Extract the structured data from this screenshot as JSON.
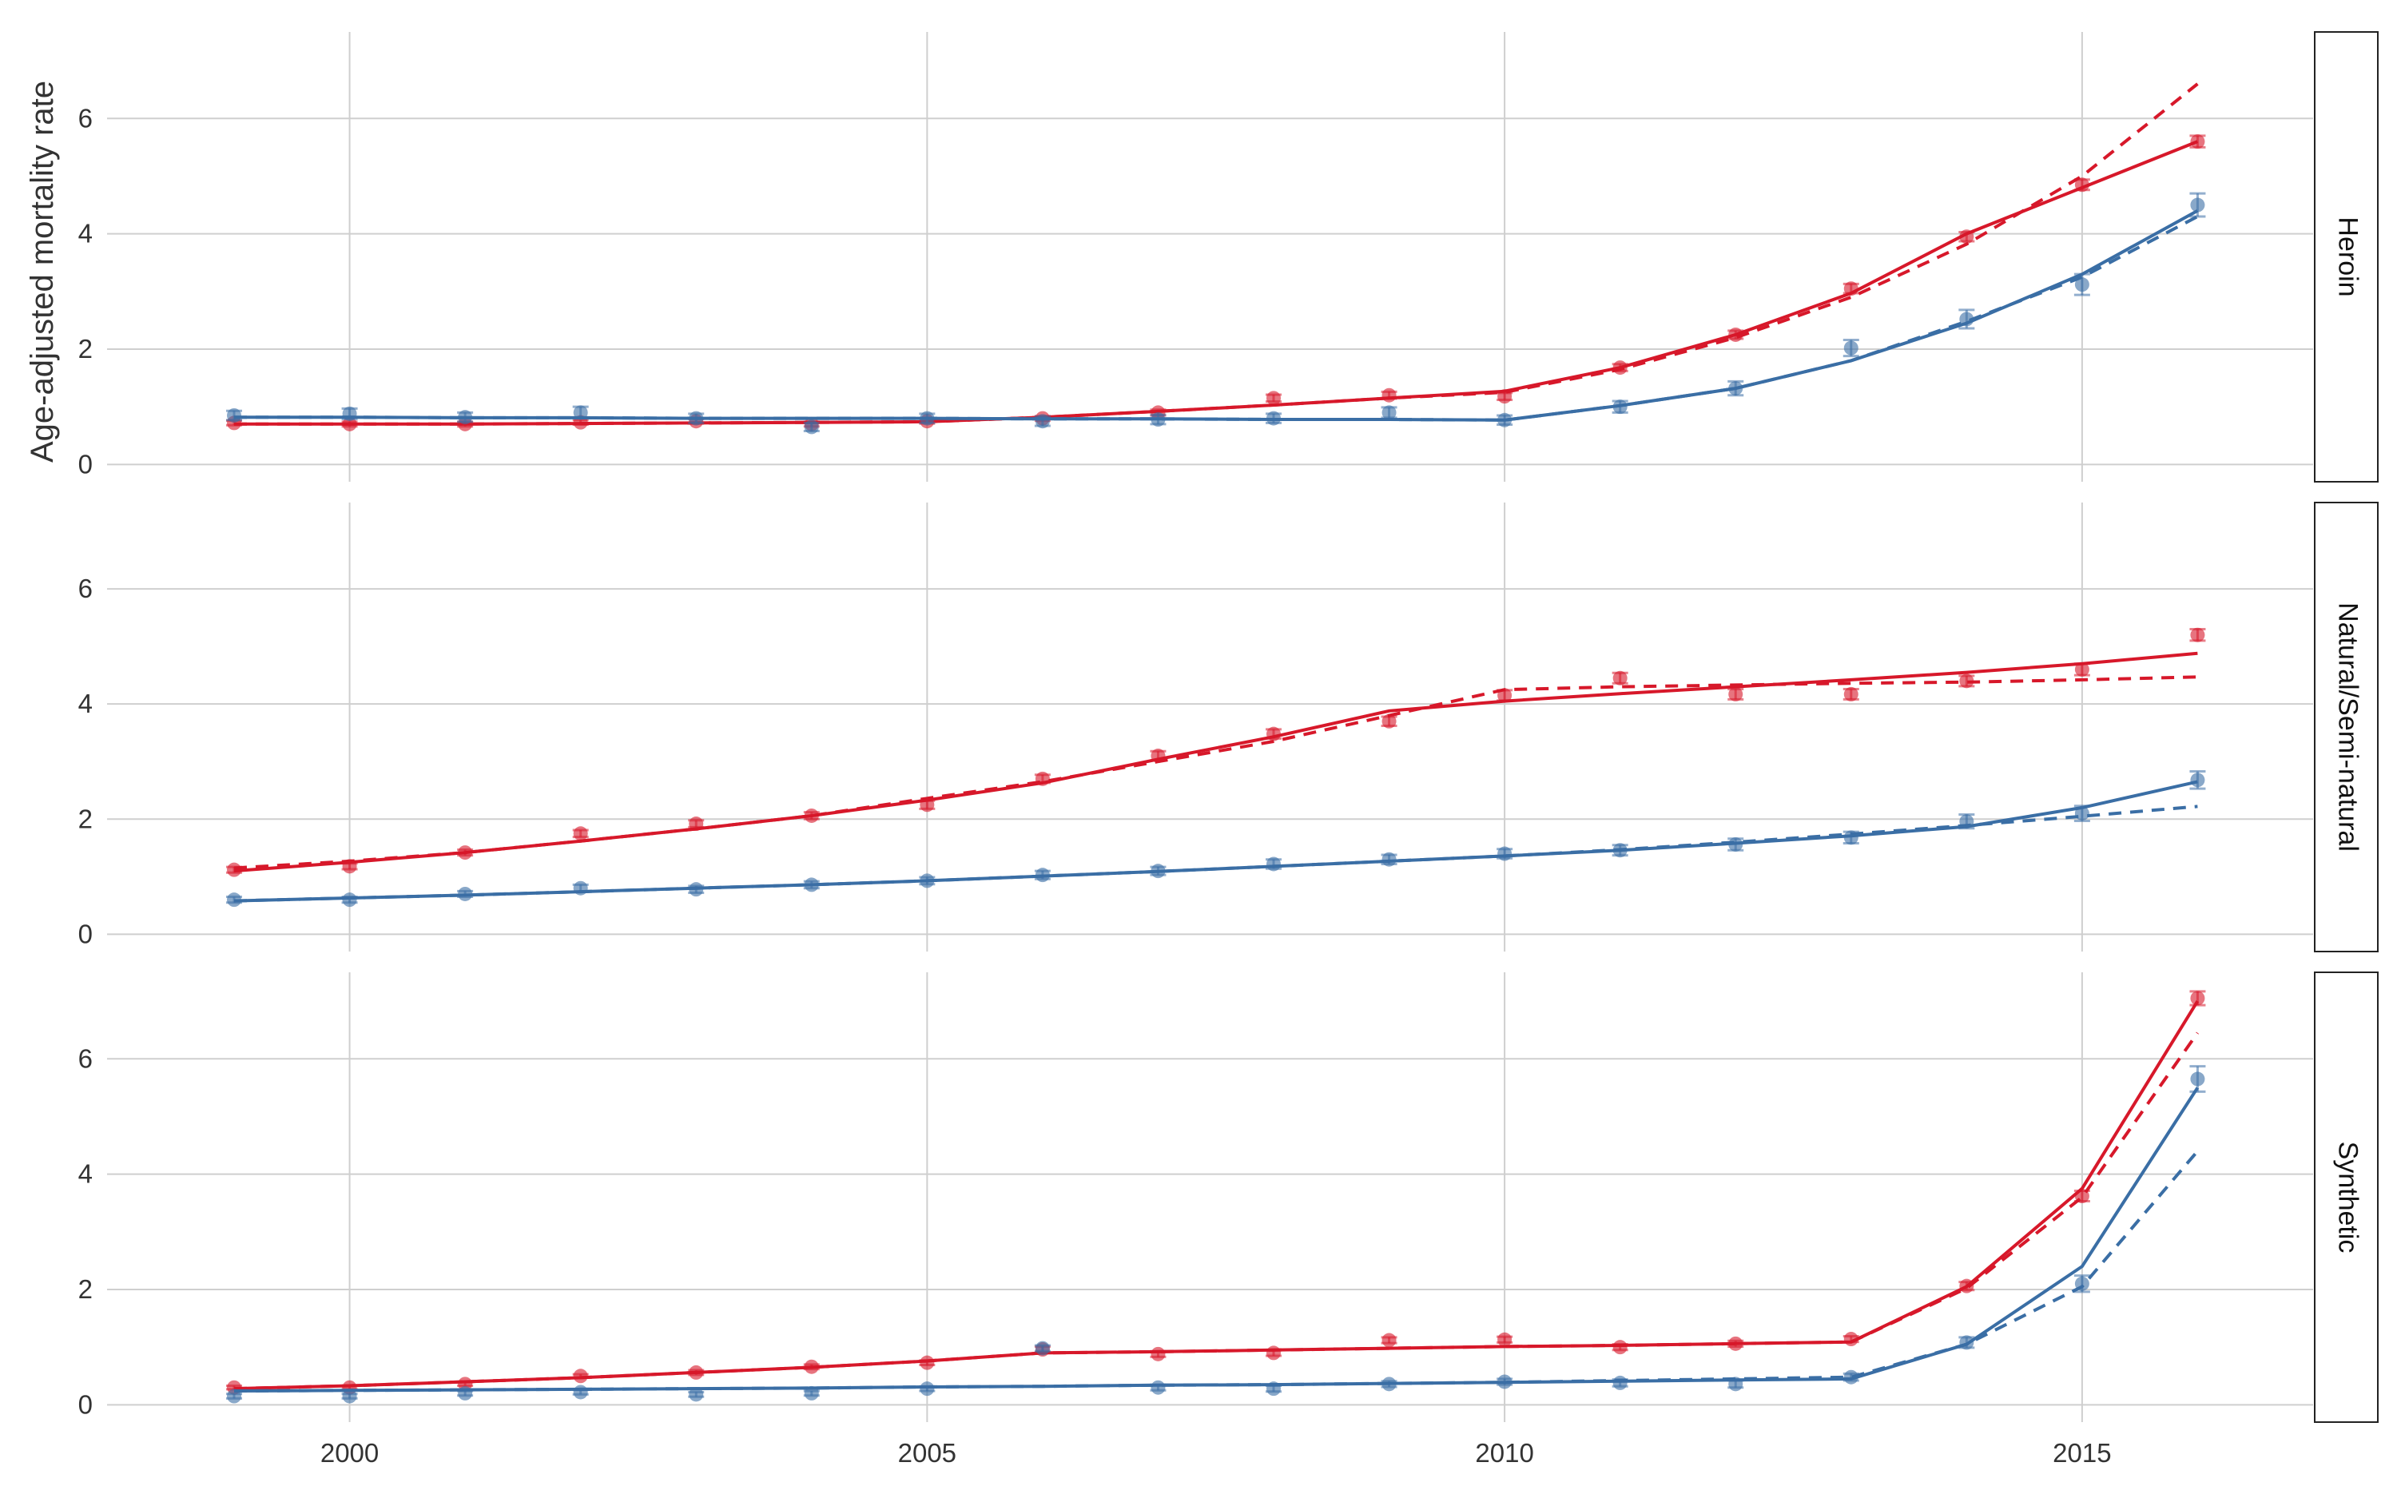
{
  "chart_data": {
    "type": "line",
    "ylabel": "Age-adjusted mortality rate",
    "x_ticks": [
      "2000",
      "2005",
      "2010",
      "2015"
    ],
    "y_ticks": [
      "0",
      "2",
      "4",
      "6"
    ],
    "xlim": [
      1997.9,
      2017
    ],
    "ylim": [
      -0.3,
      7.5
    ],
    "grid": true,
    "colors": {
      "red": "#d7182a",
      "blue": "#3a6ea5"
    },
    "x": [
      1999,
      2000,
      2001,
      2002,
      2003,
      2004,
      2005,
      2006,
      2007,
      2008,
      2009,
      2010,
      2011,
      2012,
      2013,
      2014,
      2015,
      2016
    ],
    "panels": [
      {
        "label": "Heroin",
        "series": [
          {
            "color": "red",
            "observed": [
              0.72,
              0.7,
              0.7,
              0.73,
              0.75,
              0.7,
              0.75,
              0.8,
              0.9,
              1.15,
              1.2,
              1.18,
              1.68,
              2.25,
              3.05,
              3.95,
              4.85,
              5.6
            ],
            "error": [
              0.04,
              0.04,
              0.04,
              0.04,
              0.04,
              0.04,
              0.04,
              0.04,
              0.05,
              0.06,
              0.06,
              0.06,
              0.06,
              0.07,
              0.08,
              0.08,
              0.09,
              0.1
            ],
            "fit_solid": [
              0.7,
              0.7,
              0.7,
              0.71,
              0.72,
              0.73,
              0.74,
              0.82,
              0.92,
              1.03,
              1.15,
              1.27,
              1.68,
              2.25,
              2.97,
              4.0,
              4.8,
              5.6
            ],
            "fit_dashed": [
              0.7,
              0.7,
              0.7,
              0.71,
              0.72,
              0.73,
              0.74,
              0.82,
              0.92,
              1.03,
              1.15,
              1.25,
              1.65,
              2.2,
              2.9,
              3.82,
              5.0,
              6.6
            ]
          },
          {
            "color": "blue",
            "observed": [
              0.85,
              0.88,
              0.82,
              0.9,
              0.8,
              0.65,
              0.8,
              0.75,
              0.78,
              0.8,
              0.9,
              0.77,
              1.0,
              1.32,
              2.02,
              2.52,
              3.12,
              4.5
            ],
            "error": [
              0.08,
              0.09,
              0.08,
              0.1,
              0.08,
              0.07,
              0.08,
              0.08,
              0.08,
              0.08,
              0.09,
              0.08,
              0.1,
              0.12,
              0.14,
              0.16,
              0.18,
              0.2
            ],
            "fit_solid": [
              0.82,
              0.82,
              0.81,
              0.81,
              0.8,
              0.8,
              0.8,
              0.79,
              0.79,
              0.78,
              0.78,
              0.77,
              1.02,
              1.32,
              1.8,
              2.45,
              3.3,
              4.4
            ],
            "fit_dashed": [
              0.82,
              0.82,
              0.81,
              0.81,
              0.8,
              0.8,
              0.8,
              0.79,
              0.79,
              0.78,
              0.78,
              0.77,
              1.02,
              1.32,
              1.8,
              2.48,
              3.25,
              4.3
            ]
          }
        ]
      },
      {
        "label": "Natural/Semi-natural",
        "series": [
          {
            "color": "red",
            "observed": [
              1.12,
              1.18,
              1.42,
              1.75,
              1.92,
              2.06,
              2.25,
              2.7,
              3.1,
              3.48,
              3.7,
              4.15,
              4.45,
              4.17,
              4.17,
              4.4,
              4.6,
              5.2
            ],
            "error": [
              0.05,
              0.05,
              0.05,
              0.06,
              0.06,
              0.06,
              0.07,
              0.07,
              0.08,
              0.08,
              0.08,
              0.09,
              0.09,
              0.09,
              0.09,
              0.09,
              0.1,
              0.1
            ],
            "fit_solid": [
              1.1,
              1.25,
              1.42,
              1.62,
              1.83,
              2.06,
              2.33,
              2.63,
              3.04,
              3.43,
              3.88,
              4.05,
              4.18,
              4.3,
              4.42,
              4.55,
              4.7,
              4.88
            ],
            "fit_dashed": [
              1.15,
              1.27,
              1.42,
              1.62,
              1.83,
              2.06,
              2.36,
              2.65,
              3.0,
              3.35,
              3.8,
              4.25,
              4.3,
              4.33,
              4.36,
              4.38,
              4.42,
              4.47
            ]
          },
          {
            "color": "blue",
            "observed": [
              0.6,
              0.6,
              0.7,
              0.8,
              0.78,
              0.86,
              0.93,
              1.03,
              1.1,
              1.22,
              1.3,
              1.4,
              1.46,
              1.56,
              1.68,
              1.96,
              2.1,
              2.68
            ],
            "error": [
              0.05,
              0.05,
              0.05,
              0.06,
              0.06,
              0.06,
              0.06,
              0.07,
              0.07,
              0.08,
              0.08,
              0.08,
              0.09,
              0.1,
              0.1,
              0.12,
              0.13,
              0.15
            ],
            "fit_solid": [
              0.58,
              0.63,
              0.68,
              0.74,
              0.8,
              0.86,
              0.93,
              1.01,
              1.09,
              1.18,
              1.27,
              1.36,
              1.46,
              1.58,
              1.71,
              1.87,
              2.2,
              2.65
            ],
            "fit_dashed": [
              0.58,
              0.63,
              0.68,
              0.74,
              0.8,
              0.86,
              0.93,
              1.01,
              1.09,
              1.18,
              1.27,
              1.36,
              1.47,
              1.6,
              1.74,
              1.89,
              2.05,
              2.22
            ]
          }
        ]
      },
      {
        "label": "Synthetic",
        "series": [
          {
            "color": "red",
            "observed": [
              0.3,
              0.3,
              0.36,
              0.5,
              0.56,
              0.66,
              0.73,
              0.96,
              0.88,
              0.9,
              1.12,
              1.13,
              1.0,
              1.06,
              1.14,
              2.06,
              3.62,
              7.05
            ],
            "error": [
              0.03,
              0.03,
              0.03,
              0.03,
              0.04,
              0.04,
              0.04,
              0.05,
              0.05,
              0.05,
              0.05,
              0.05,
              0.05,
              0.05,
              0.05,
              0.07,
              0.09,
              0.12
            ],
            "fit_solid": [
              0.28,
              0.33,
              0.4,
              0.47,
              0.56,
              0.65,
              0.76,
              0.9,
              0.92,
              0.95,
              0.98,
              1.01,
              1.03,
              1.06,
              1.09,
              2.05,
              3.75,
              7.0
            ],
            "fit_dashed": [
              0.28,
              0.33,
              0.4,
              0.47,
              0.56,
              0.65,
              0.76,
              0.9,
              0.92,
              0.95,
              0.98,
              1.01,
              1.03,
              1.06,
              1.09,
              2.02,
              3.6,
              6.45
            ]
          },
          {
            "color": "blue",
            "observed": [
              0.15,
              0.15,
              0.2,
              0.22,
              0.18,
              0.2,
              0.28,
              0.98,
              0.3,
              0.28,
              0.36,
              0.4,
              0.38,
              0.36,
              0.48,
              1.08,
              2.1,
              5.65
            ],
            "error": [
              0.04,
              0.04,
              0.04,
              0.04,
              0.04,
              0.04,
              0.04,
              0.05,
              0.05,
              0.05,
              0.05,
              0.05,
              0.06,
              0.06,
              0.06,
              0.09,
              0.14,
              0.22
            ],
            "fit_solid": [
              0.24,
              0.25,
              0.26,
              0.27,
              0.28,
              0.29,
              0.31,
              0.32,
              0.34,
              0.35,
              0.37,
              0.39,
              0.41,
              0.43,
              0.45,
              1.05,
              2.4,
              5.5
            ],
            "fit_dashed": [
              0.24,
              0.25,
              0.26,
              0.27,
              0.28,
              0.29,
              0.31,
              0.32,
              0.34,
              0.35,
              0.37,
              0.39,
              0.42,
              0.45,
              0.48,
              1.05,
              2.05,
              4.4
            ]
          }
        ]
      }
    ]
  }
}
